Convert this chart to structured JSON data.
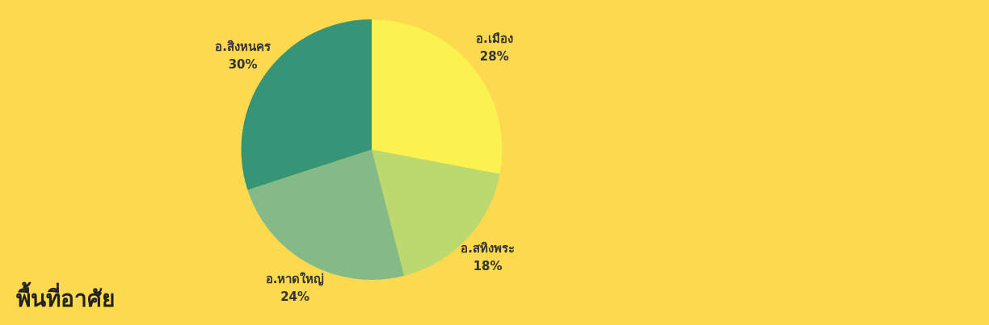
{
  "chart_data": {
    "type": "pie",
    "title": "พื้นที่อาศัย",
    "categories": [
      "อ.เมือง",
      "อ.สทิงพระ",
      "อ.หาดใหญ่",
      "อ.สิงหนคร"
    ],
    "values": [
      28,
      18,
      24,
      30
    ],
    "colors": [
      "#fbf150",
      "#bcd96f",
      "#84ba88",
      "#369477"
    ],
    "value_labels": [
      "28%",
      "18%",
      "24%",
      "30%"
    ],
    "legend": false
  }
}
